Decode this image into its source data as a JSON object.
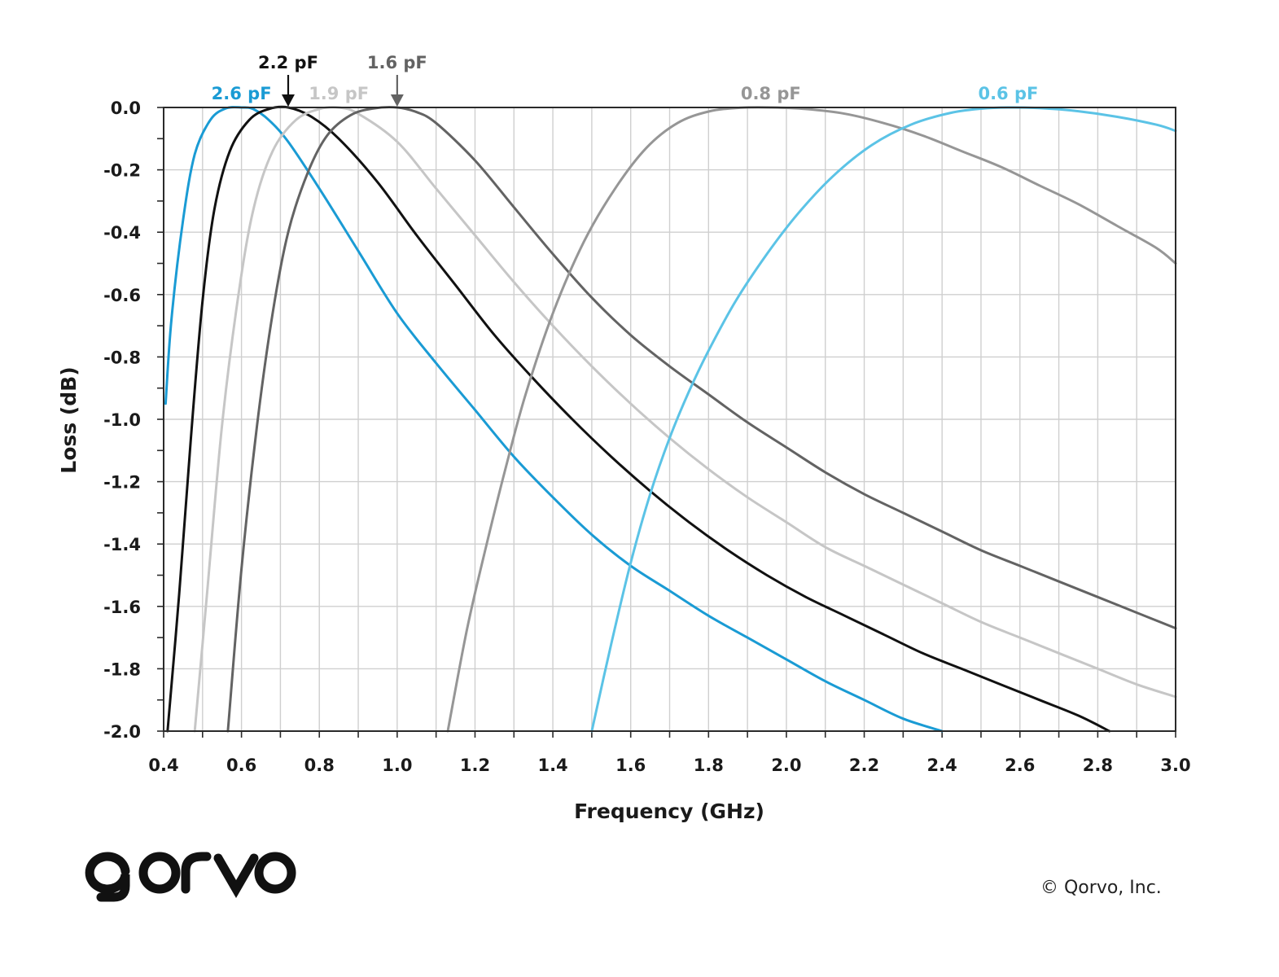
{
  "chart_data": {
    "type": "line",
    "title": "",
    "xlabel": "Frequency (GHz)",
    "ylabel": "Loss (dB)",
    "xlim": [
      0.4,
      3.0
    ],
    "ylim": [
      -2.0,
      0.0
    ],
    "x_ticks": [
      "0.4",
      "0.6",
      "0.8",
      "1.0",
      "1.2",
      "1.4",
      "1.6",
      "1.8",
      "2.0",
      "2.2",
      "2.4",
      "2.6",
      "2.8",
      "3.0"
    ],
    "y_ticks": [
      "0.0",
      "-0.2",
      "-0.4",
      "-0.6",
      "-0.8",
      "-1.0",
      "-1.2",
      "-1.4",
      "-1.6",
      "-1.8",
      "-2.0"
    ],
    "grid": true,
    "legend": "none",
    "series": [
      {
        "name": "2.6 pF",
        "color": "#1a9bd4",
        "label_arrow": false,
        "x": [
          0.405,
          0.42,
          0.45,
          0.48,
          0.52,
          0.56,
          0.6,
          0.63,
          0.67,
          0.72,
          0.8,
          0.9,
          1.0,
          1.1,
          1.2,
          1.3,
          1.4,
          1.5,
          1.6,
          1.7,
          1.8,
          1.9,
          2.0,
          2.1,
          2.2,
          2.3,
          2.4
        ],
        "y": [
          -0.95,
          -0.68,
          -0.36,
          -0.15,
          -0.04,
          -0.003,
          0.0,
          -0.005,
          -0.04,
          -0.11,
          -0.26,
          -0.46,
          -0.66,
          -0.82,
          -0.97,
          -1.12,
          -1.25,
          -1.37,
          -1.47,
          -1.55,
          -1.63,
          -1.7,
          -1.77,
          -1.84,
          -1.9,
          -1.96,
          -2.0
        ]
      },
      {
        "name": "2.2 pF",
        "color": "#111111",
        "label_arrow": true,
        "x": [
          0.41,
          0.44,
          0.47,
          0.5,
          0.53,
          0.57,
          0.62,
          0.67,
          0.72,
          0.78,
          0.85,
          0.95,
          1.05,
          1.15,
          1.25,
          1.35,
          1.45,
          1.55,
          1.65,
          1.75,
          1.85,
          1.95,
          2.05,
          2.15,
          2.25,
          2.35,
          2.45,
          2.55,
          2.65,
          2.75,
          2.83
        ],
        "y": [
          -2.0,
          -1.56,
          -1.06,
          -0.62,
          -0.33,
          -0.14,
          -0.04,
          -0.005,
          0.0,
          -0.03,
          -0.1,
          -0.24,
          -0.41,
          -0.57,
          -0.73,
          -0.87,
          -1.0,
          -1.12,
          -1.23,
          -1.33,
          -1.42,
          -1.5,
          -1.57,
          -1.63,
          -1.69,
          -1.75,
          -1.8,
          -1.85,
          -1.9,
          -1.95,
          -2.0
        ]
      },
      {
        "name": "1.9 pF",
        "color": "#c6c6c6",
        "label_arrow": false,
        "x": [
          0.48,
          0.51,
          0.55,
          0.59,
          0.63,
          0.68,
          0.74,
          0.8,
          0.85,
          0.9,
          1.0,
          1.1,
          1.2,
          1.3,
          1.4,
          1.5,
          1.6,
          1.7,
          1.8,
          1.9,
          2.0,
          2.1,
          2.2,
          2.3,
          2.4,
          2.5,
          2.6,
          2.7,
          2.8,
          2.9,
          3.0
        ],
        "y": [
          -2.0,
          -1.58,
          -1.02,
          -0.62,
          -0.33,
          -0.14,
          -0.04,
          -0.005,
          0.0,
          -0.02,
          -0.11,
          -0.26,
          -0.41,
          -0.56,
          -0.7,
          -0.83,
          -0.95,
          -1.06,
          -1.16,
          -1.25,
          -1.33,
          -1.41,
          -1.47,
          -1.53,
          -1.59,
          -1.65,
          -1.7,
          -1.75,
          -1.8,
          -1.85,
          -1.89
        ]
      },
      {
        "name": "1.6 pF",
        "color": "#636363",
        "label_arrow": true,
        "x": [
          0.565,
          0.6,
          0.64,
          0.68,
          0.72,
          0.77,
          0.82,
          0.88,
          0.94,
          1.0,
          1.05,
          1.1,
          1.2,
          1.3,
          1.4,
          1.5,
          1.6,
          1.7,
          1.8,
          1.9,
          2.0,
          2.1,
          2.2,
          2.3,
          2.4,
          2.5,
          2.6,
          2.7,
          2.8,
          2.9,
          3.0
        ],
        "y": [
          -2.0,
          -1.48,
          -1.02,
          -0.66,
          -0.4,
          -0.21,
          -0.09,
          -0.025,
          -0.003,
          0.0,
          -0.015,
          -0.05,
          -0.17,
          -0.32,
          -0.47,
          -0.61,
          -0.73,
          -0.83,
          -0.92,
          -1.01,
          -1.09,
          -1.17,
          -1.24,
          -1.3,
          -1.36,
          -1.42,
          -1.47,
          -1.52,
          -1.57,
          -1.62,
          -1.67
        ]
      },
      {
        "name": "0.8 pF",
        "color": "#969696",
        "label_arrow": false,
        "x": [
          1.13,
          1.18,
          1.23,
          1.28,
          1.33,
          1.4,
          1.48,
          1.56,
          1.64,
          1.72,
          1.8,
          1.88,
          1.96,
          2.05,
          2.15,
          2.25,
          2.35,
          2.45,
          2.55,
          2.65,
          2.75,
          2.85,
          2.95,
          3.0
        ],
        "y": [
          -2.0,
          -1.67,
          -1.4,
          -1.15,
          -0.92,
          -0.66,
          -0.43,
          -0.26,
          -0.13,
          -0.05,
          -0.013,
          -0.001,
          0.0,
          -0.005,
          -0.02,
          -0.05,
          -0.09,
          -0.14,
          -0.19,
          -0.25,
          -0.31,
          -0.38,
          -0.45,
          -0.5
        ]
      },
      {
        "name": "0.6 pF",
        "color": "#5bc3e6",
        "label_arrow": false,
        "x": [
          1.5,
          1.55,
          1.6,
          1.65,
          1.7,
          1.75,
          1.8,
          1.87,
          1.95,
          2.03,
          2.12,
          2.22,
          2.32,
          2.42,
          2.5,
          2.57,
          2.65,
          2.75,
          2.85,
          2.95,
          3.0
        ],
        "y": [
          -2.0,
          -1.72,
          -1.46,
          -1.24,
          -1.06,
          -0.91,
          -0.78,
          -0.62,
          -0.47,
          -0.34,
          -0.22,
          -0.12,
          -0.055,
          -0.018,
          -0.004,
          0.0,
          -0.002,
          -0.012,
          -0.03,
          -0.055,
          -0.075
        ]
      }
    ]
  },
  "footer": {
    "copyright": "© Qorvo, Inc."
  },
  "logo": {
    "text": "qorvo",
    "icon": "qorvo-logo"
  }
}
